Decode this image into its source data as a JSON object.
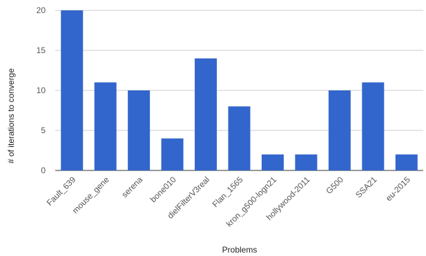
{
  "chart_data": {
    "type": "bar",
    "title": "",
    "xlabel": "Problems",
    "ylabel": "# of iterations to converge",
    "ylim": [
      0,
      20
    ],
    "yticks": [
      0,
      5,
      10,
      15,
      20
    ],
    "grid": true,
    "bar_color": "#3366cc",
    "categories": [
      "Fault_639",
      "mouse_gene",
      "serena",
      "bone010",
      "dielFilterV3real",
      "Flan_1565",
      "kron_g500-logn21",
      "hollywood-2011",
      "G500",
      "SSA21",
      "eu-2015"
    ],
    "values": [
      20,
      11,
      10,
      4,
      14,
      8,
      2,
      2,
      10,
      11,
      2
    ]
  }
}
